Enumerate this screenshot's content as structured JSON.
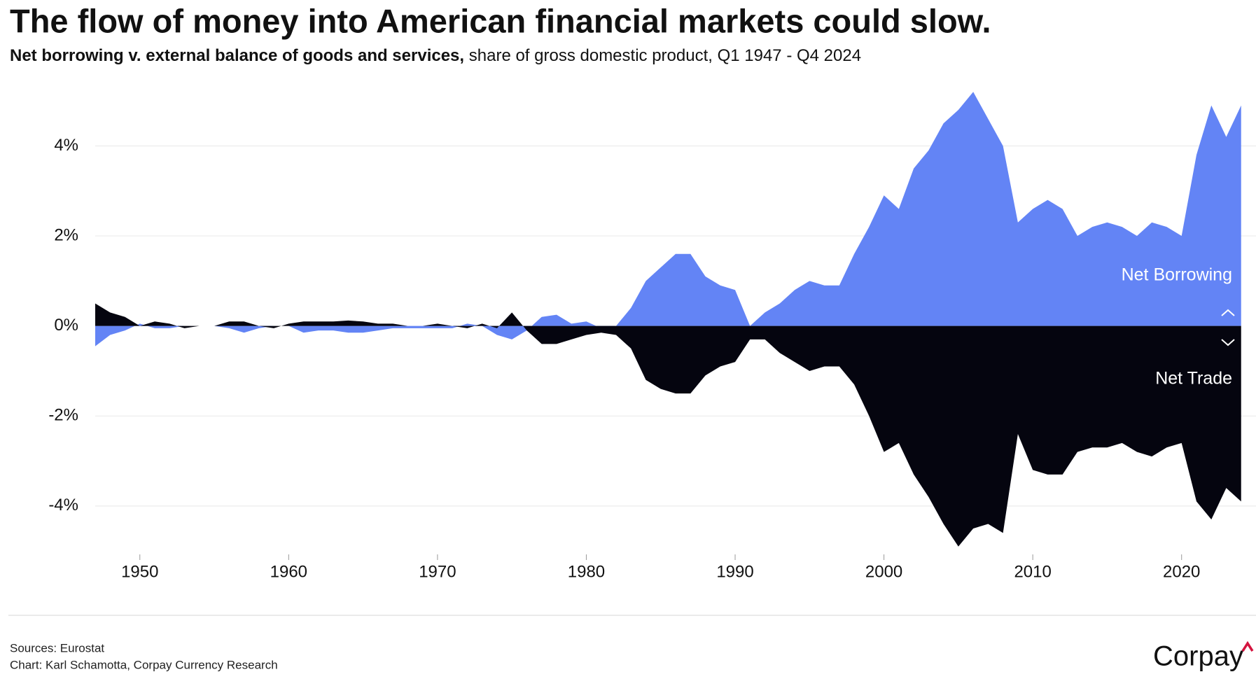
{
  "chart_data": {
    "type": "area",
    "title": "The flow of money into American financial markets could slow.",
    "subtitle": [
      "Net borrowing v. external balance of goods and services,",
      "share of gross domestic product, Q1 1947 - Q4 2024"
    ],
    "x": [
      1947,
      1948,
      1949,
      1950,
      1951,
      1952,
      1953,
      1954,
      1955,
      1956,
      1957,
      1958,
      1959,
      1960,
      1961,
      1962,
      1963,
      1964,
      1965,
      1966,
      1967,
      1968,
      1969,
      1970,
      1971,
      1972,
      1973,
      1974,
      1975,
      1976,
      1977,
      1978,
      1979,
      1980,
      1981,
      1982,
      1983,
      1984,
      1985,
      1986,
      1987,
      1988,
      1989,
      1990,
      1991,
      1992,
      1993,
      1994,
      1995,
      1996,
      1997,
      1998,
      1999,
      2000,
      2001,
      2002,
      2003,
      2004,
      2005,
      2006,
      2007,
      2008,
      2009,
      2010,
      2011,
      2012,
      2013,
      2014,
      2015,
      2016,
      2017,
      2018,
      2019,
      2020,
      2021,
      2022,
      2023,
      2024
    ],
    "series": [
      {
        "name": "Net Borrowing",
        "color": "#6384f5",
        "values": [
          -0.45,
          -0.2,
          -0.1,
          0.05,
          -0.05,
          -0.05,
          0,
          0,
          0,
          -0.05,
          -0.15,
          -0.05,
          0,
          0,
          -0.15,
          -0.1,
          -0.1,
          -0.15,
          -0.15,
          -0.1,
          -0.05,
          -0.05,
          -0.05,
          -0.05,
          -0.05,
          0.05,
          0,
          -0.2,
          -0.3,
          -0.1,
          0.2,
          0.25,
          0.05,
          0.1,
          -0.05,
          0,
          0.4,
          1.0,
          1.3,
          1.6,
          1.6,
          1.1,
          0.9,
          0.8,
          0,
          0.3,
          0.5,
          0.8,
          1.0,
          0.9,
          0.9,
          1.6,
          2.2,
          2.9,
          2.6,
          3.5,
          3.9,
          4.5,
          4.8,
          5.2,
          4.6,
          4.0,
          2.3,
          2.6,
          2.8,
          2.6,
          2.0,
          2.2,
          2.3,
          2.2,
          2.0,
          2.3,
          2.2,
          2.0,
          3.8,
          4.9,
          4.2,
          4.9
        ]
      },
      {
        "name": "Net Trade",
        "color": "#05050f",
        "values": [
          0.5,
          0.3,
          0.2,
          0,
          0.1,
          0.05,
          -0.05,
          0,
          0,
          0.1,
          0.1,
          0,
          -0.05,
          0.05,
          0.1,
          0.1,
          0.1,
          0.12,
          0.1,
          0.05,
          0.05,
          0,
          0,
          0.05,
          0,
          -0.05,
          0.05,
          -0.05,
          0.3,
          -0.1,
          -0.4,
          -0.4,
          -0.3,
          -0.2,
          -0.15,
          -0.2,
          -0.5,
          -1.2,
          -1.4,
          -1.5,
          -1.5,
          -1.1,
          -0.9,
          -0.8,
          -0.3,
          -0.3,
          -0.6,
          -0.8,
          -1.0,
          -0.9,
          -0.9,
          -1.3,
          -2.0,
          -2.8,
          -2.6,
          -3.3,
          -3.8,
          -4.4,
          -4.9,
          -4.5,
          -4.4,
          -4.6,
          -2.4,
          -3.2,
          -3.3,
          -3.3,
          -2.8,
          -2.7,
          -2.7,
          -2.6,
          -2.8,
          -2.9,
          -2.7,
          -2.6,
          -3.9,
          -4.3,
          -3.6,
          -3.9
        ]
      }
    ],
    "xlim": [
      1947,
      2025
    ],
    "ylim": [
      -5.2,
      5.5
    ],
    "xticks": [
      1950,
      1960,
      1970,
      1980,
      1990,
      2000,
      2010,
      2020
    ],
    "yticks": [
      {
        "value": 4,
        "label": "4%"
      },
      {
        "value": 2,
        "label": "2%"
      },
      {
        "value": 0,
        "label": "0%"
      },
      {
        "value": -2,
        "label": "-2%"
      },
      {
        "value": -4,
        "label": "-4%"
      }
    ],
    "grid": true,
    "sources": [
      "Sources: Eurostat",
      "Chart: Karl Schamotta, Corpay Currency Research"
    ],
    "logo": "Corpay"
  }
}
